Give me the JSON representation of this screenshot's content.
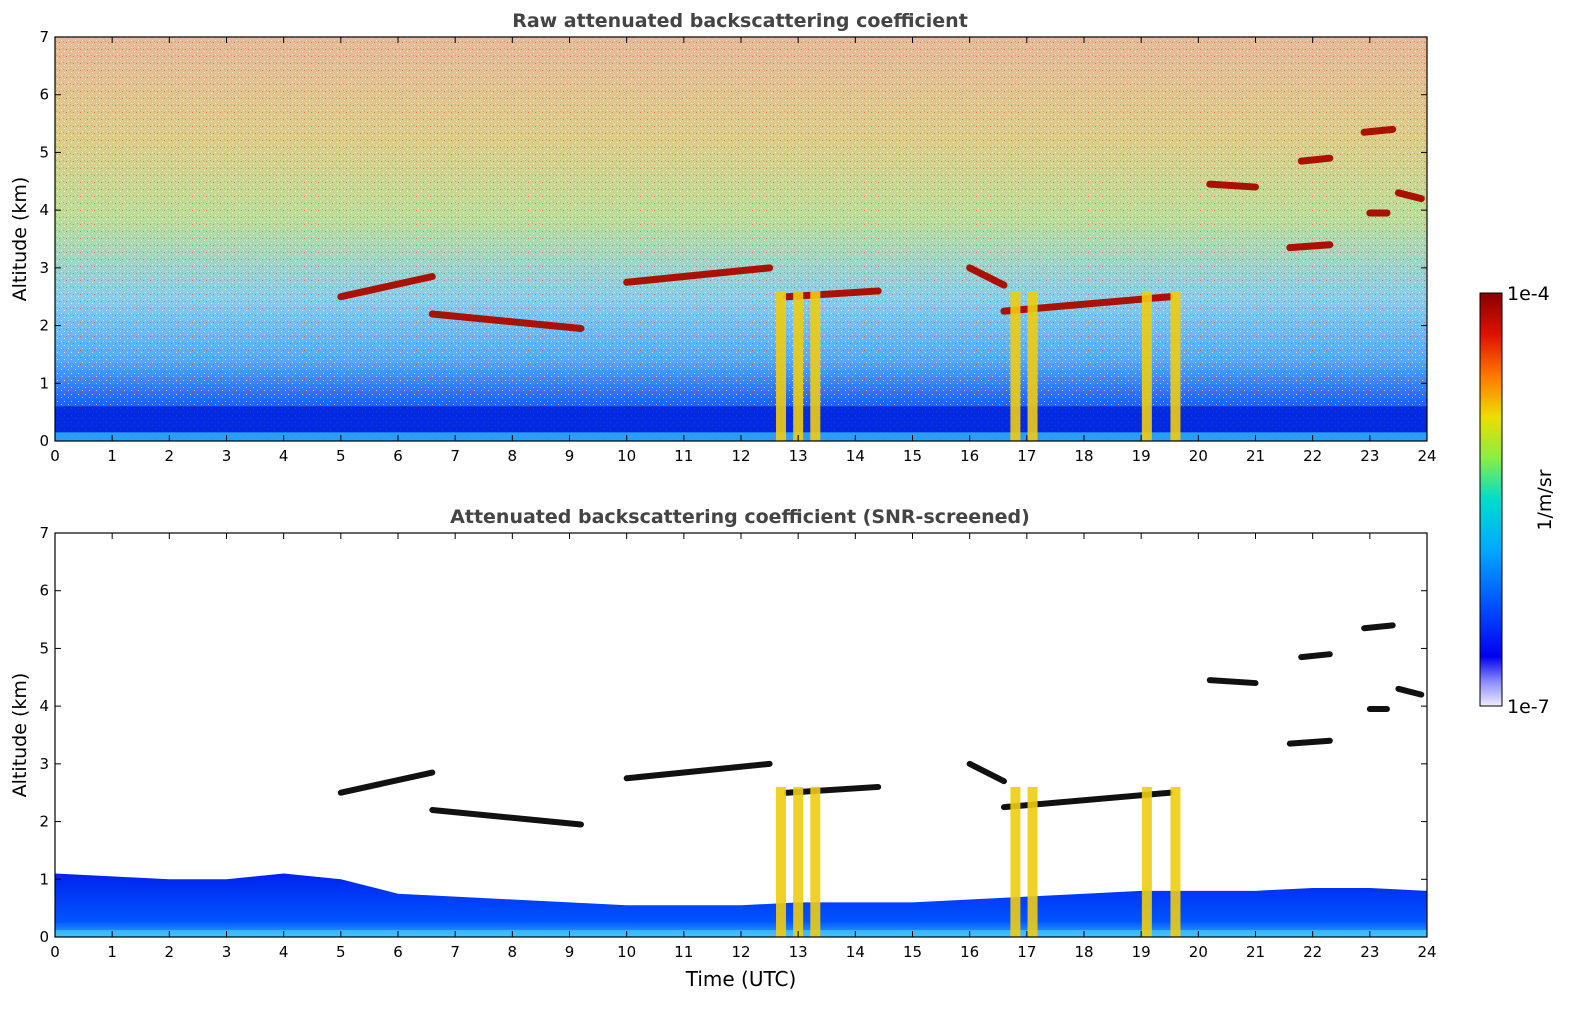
{
  "chart_data": [
    {
      "type": "heatmap",
      "title": "Raw attenuated backscattering coefficient",
      "xlabel": "",
      "ylabel": "Altitude (km)",
      "xlim": [
        0,
        24
      ],
      "ylim": [
        0,
        7
      ],
      "xticks": [
        "0",
        "1",
        "2",
        "3",
        "4",
        "5",
        "6",
        "7",
        "8",
        "9",
        "10",
        "11",
        "12",
        "13",
        "14",
        "15",
        "16",
        "17",
        "18",
        "19",
        "20",
        "21",
        "22",
        "23",
        "24"
      ],
      "yticks": [
        "0",
        "1",
        "2",
        "3",
        "4",
        "5",
        "6",
        "7"
      ],
      "cloud_layers": [
        {
          "t": [
            5.0,
            6.6
          ],
          "alt": [
            2.5,
            2.85
          ]
        },
        {
          "t": [
            6.6,
            9.2
          ],
          "alt": [
            2.2,
            1.95
          ]
        },
        {
          "t": [
            10.0,
            12.5
          ],
          "alt": [
            2.75,
            3.0
          ]
        },
        {
          "t": [
            12.8,
            14.4
          ],
          "alt": [
            2.5,
            2.6
          ]
        },
        {
          "t": [
            16.0,
            16.6
          ],
          "alt": [
            3.0,
            2.7
          ]
        },
        {
          "t": [
            16.6,
            19.5
          ],
          "alt": [
            2.25,
            2.5
          ]
        },
        {
          "t": [
            20.2,
            21.0
          ],
          "alt": [
            4.45,
            4.4
          ]
        },
        {
          "t": [
            21.6,
            22.3
          ],
          "alt": [
            3.35,
            3.4
          ]
        },
        {
          "t": [
            21.8,
            22.3
          ],
          "alt": [
            4.85,
            4.9
          ]
        },
        {
          "t": [
            22.9,
            23.4
          ],
          "alt": [
            5.35,
            5.4
          ]
        },
        {
          "t": [
            23.0,
            23.3
          ],
          "alt": [
            3.95,
            3.95
          ]
        },
        {
          "t": [
            23.5,
            23.9
          ],
          "alt": [
            4.3,
            4.2
          ]
        }
      ],
      "precip_columns": [
        12.7,
        13.0,
        13.3,
        16.8,
        17.1,
        19.1,
        19.6
      ]
    },
    {
      "type": "heatmap",
      "title": "Attenuated backscattering coefficient (SNR-screened)",
      "xlabel": "Time (UTC)",
      "ylabel": "Altitude (km)",
      "xlim": [
        0,
        24
      ],
      "ylim": [
        0,
        7
      ],
      "xticks": [
        "0",
        "1",
        "2",
        "3",
        "4",
        "5",
        "6",
        "7",
        "8",
        "9",
        "10",
        "11",
        "12",
        "13",
        "14",
        "15",
        "16",
        "17",
        "18",
        "19",
        "20",
        "21",
        "22",
        "23",
        "24"
      ],
      "yticks": [
        "0",
        "1",
        "2",
        "3",
        "4",
        "5",
        "6",
        "7"
      ],
      "boundary_layer_top_km": [
        1.1,
        1.05,
        1.0,
        1.0,
        1.1,
        1.0,
        0.75,
        0.7,
        0.65,
        0.6,
        0.55,
        0.55,
        0.55,
        0.6,
        0.6,
        0.6,
        0.65,
        0.7,
        0.75,
        0.8,
        0.8,
        0.8,
        0.85,
        0.85,
        0.8
      ]
    }
  ],
  "colorbar": {
    "label": "1/m/sr",
    "max_label": "1e-4",
    "min_label": "1e-7",
    "min": 1e-07,
    "max": 0.0001,
    "scale": "log",
    "colors": [
      "#eeeeff",
      "#bbbbff",
      "#8888ff",
      "#3333ff",
      "#0000ee",
      "#0044ff",
      "#0088ff",
      "#00bbff",
      "#00ddee",
      "#22eebb",
      "#77ee55",
      "#bbee22",
      "#eedd00",
      "#ffaa00",
      "#ff6600",
      "#ee2200",
      "#bb0000",
      "#880000"
    ]
  }
}
